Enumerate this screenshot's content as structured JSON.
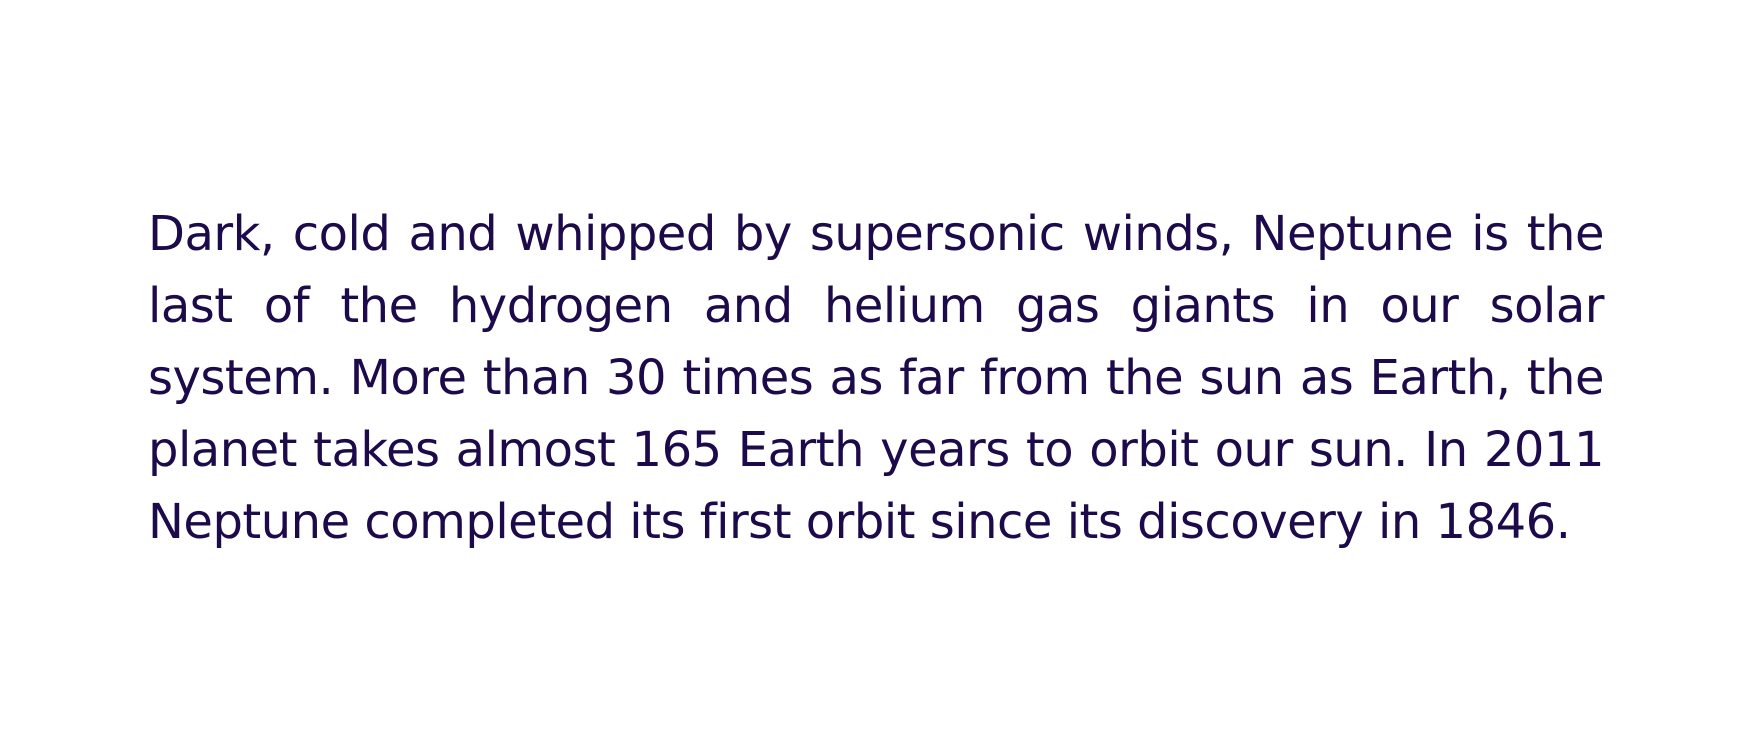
{
  "paragraph": {
    "text": "Dark, cold and whipped by supersonic winds, Neptune is the last of the hydrogen and helium gas giants in our solar system. More than 30 times as far from the sun as Earth, the planet takes almost 165 Earth years to orbit our sun. In 2011 Neptune completed its first orbit since its discovery in 1846."
  },
  "colors": {
    "text": "#1c0a4a",
    "background": "#ffffff"
  }
}
